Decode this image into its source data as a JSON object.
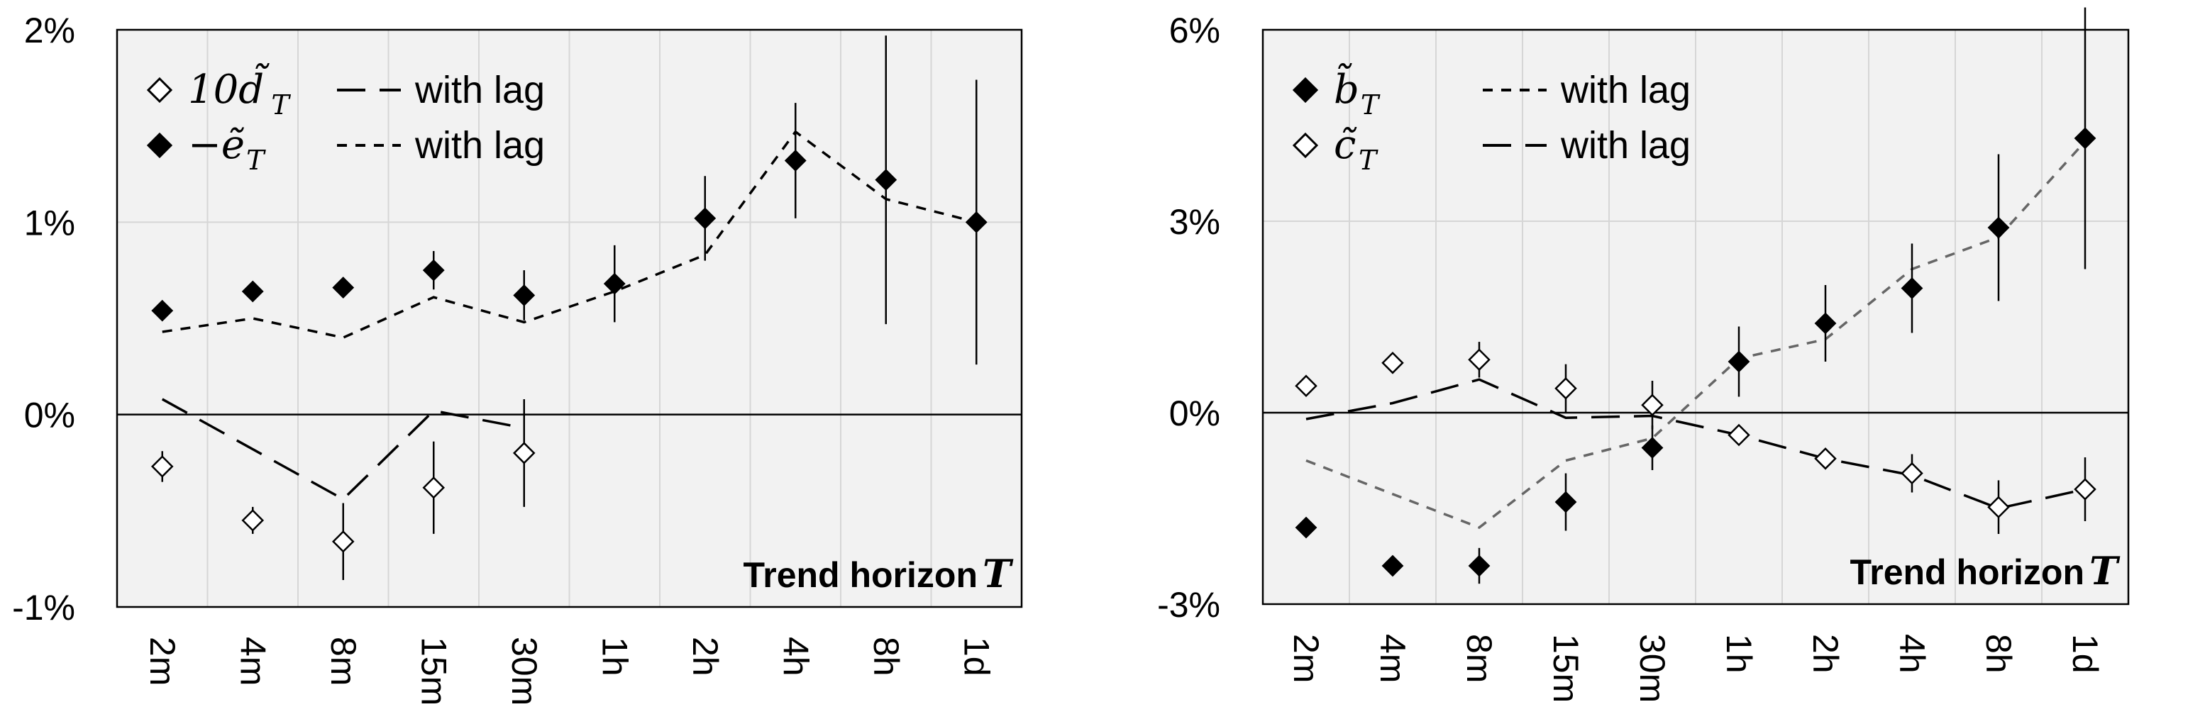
{
  "chart_data": [
    {
      "type": "scatter",
      "categories": [
        "2m",
        "4m",
        "8m",
        "15m",
        "30m",
        "1h",
        "2h",
        "4h",
        "8h",
        "1d"
      ],
      "ylim": [
        -1,
        2
      ],
      "yticks": [
        {
          "value": -1,
          "label": "-1%"
        },
        {
          "value": 0,
          "label": "0%"
        },
        {
          "value": 1,
          "label": "1%"
        },
        {
          "value": 2,
          "label": "2%"
        }
      ],
      "annotation": {
        "text": "Trend horizon",
        "var": "T"
      },
      "grid": true,
      "legend_position": "top-left",
      "legend": [
        {
          "sym_prefix": "10",
          "sym_base": "d̃",
          "sym_sub": "T",
          "marker": "open-diamond",
          "line_style": "long-dash",
          "line_label": "with lag"
        },
        {
          "sym_prefix": "−",
          "sym_base": "ẽ",
          "sym_sub": "T",
          "marker": "filled-diamond",
          "line_style": "short-dash",
          "line_label": "with lag"
        }
      ],
      "series": [
        {
          "marker": "open-diamond",
          "values": [
            -0.27,
            -0.55,
            -0.66,
            -0.38,
            -0.2,
            null,
            null,
            null,
            null,
            null
          ],
          "errors": [
            0.08,
            0.07,
            0.2,
            0.24,
            0.28,
            null,
            null,
            null,
            null,
            null
          ]
        },
        {
          "marker": "filled-diamond",
          "values": [
            0.54,
            0.64,
            0.66,
            0.75,
            0.62,
            0.68,
            1.02,
            1.32,
            1.22,
            1.0
          ],
          "errors": [
            0.0,
            0.0,
            0.0,
            0.1,
            0.13,
            0.2,
            0.22,
            0.3,
            0.75,
            0.74
          ]
        },
        {
          "line_style": "long-dash",
          "color": "#000000",
          "values": [
            0.08,
            null,
            -0.44,
            0.02,
            -0.07,
            null,
            null,
            null,
            null,
            null
          ]
        },
        {
          "line_style": "short-dash",
          "color": "#000000",
          "values": [
            0.43,
            0.5,
            0.4,
            0.61,
            0.48,
            0.64,
            0.83,
            1.47,
            1.12,
            1.0
          ]
        }
      ]
    },
    {
      "type": "scatter",
      "categories": [
        "2m",
        "4m",
        "8m",
        "15m",
        "30m",
        "1h",
        "2h",
        "4h",
        "8h",
        "1d"
      ],
      "ylim": [
        -3,
        6
      ],
      "yticks": [
        {
          "value": -3,
          "label": "-3%"
        },
        {
          "value": 0,
          "label": "0%"
        },
        {
          "value": 3,
          "label": "3%"
        },
        {
          "value": 6,
          "label": "6%"
        }
      ],
      "annotation": {
        "text": "Trend horizon",
        "var": "T"
      },
      "grid": true,
      "legend_position": "top-left",
      "legend": [
        {
          "sym_prefix": "",
          "sym_base": "b̃",
          "sym_sub": "T",
          "marker": "filled-diamond",
          "line_style": "short-dash",
          "line_label": "with lag"
        },
        {
          "sym_prefix": "",
          "sym_base": "c̃",
          "sym_sub": "T",
          "marker": "open-diamond",
          "line_style": "long-dash",
          "line_label": "with lag"
        }
      ],
      "series": [
        {
          "marker": "filled-diamond",
          "values": [
            -1.8,
            -2.4,
            -2.4,
            -1.4,
            -0.55,
            0.8,
            1.4,
            1.95,
            2.9,
            4.3
          ],
          "errors": [
            0.0,
            0.0,
            0.28,
            0.45,
            0.35,
            0.55,
            0.6,
            0.7,
            1.15,
            2.05
          ]
        },
        {
          "marker": "open-diamond",
          "values": [
            0.42,
            0.78,
            0.83,
            0.38,
            0.12,
            -0.35,
            -0.72,
            -0.95,
            -1.48,
            -1.2
          ],
          "errors": [
            0.0,
            0.0,
            0.28,
            0.38,
            0.38,
            0.0,
            0.0,
            0.3,
            0.42,
            0.5
          ]
        },
        {
          "line_style": "short-dash",
          "color": "#666666",
          "values": [
            -0.75,
            null,
            -1.8,
            -0.75,
            -0.4,
            0.85,
            1.15,
            2.25,
            2.75,
            4.25
          ]
        },
        {
          "line_style": "long-dash",
          "color": "#000000",
          "values": [
            -0.1,
            0.15,
            0.52,
            -0.08,
            -0.05,
            -0.35,
            -0.72,
            -0.98,
            -1.5,
            -1.2
          ]
        }
      ]
    }
  ]
}
